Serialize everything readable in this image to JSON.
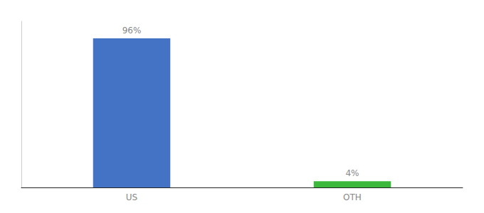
{
  "chart_data": {
    "type": "bar",
    "categories": [
      "US",
      "OTH"
    ],
    "values": [
      96,
      4
    ],
    "value_labels": [
      "96%",
      "4%"
    ],
    "colors": [
      "#4472c4",
      "#3cb83c"
    ],
    "data_labels": true,
    "ylim": [
      0,
      107
    ],
    "tick_labels": "x",
    "grid": false
  }
}
